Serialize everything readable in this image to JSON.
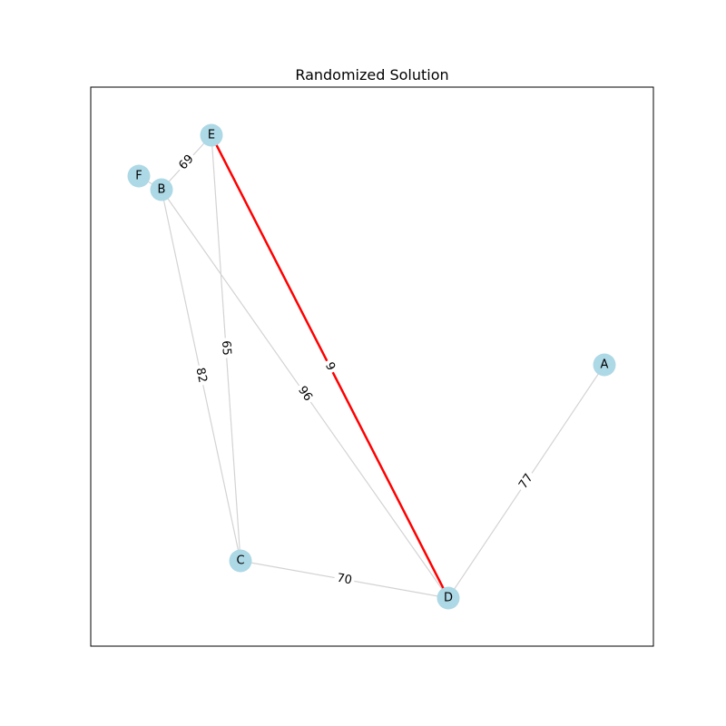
{
  "title": "Randomized Solution",
  "colors": {
    "edge": "#d3d3d3",
    "highlight": "#ff0000",
    "node": "#add8e6",
    "frame": "#000000",
    "label_bg": "#ffffff"
  },
  "nodes": [
    {
      "id": "A",
      "label": "A"
    },
    {
      "id": "B",
      "label": "B"
    },
    {
      "id": "C",
      "label": "C"
    },
    {
      "id": "D",
      "label": "D"
    },
    {
      "id": "E",
      "label": "E"
    },
    {
      "id": "F",
      "label": "F"
    }
  ],
  "edges": [
    {
      "from": "E",
      "to": "B",
      "weight": "69",
      "highlight": false
    },
    {
      "from": "E",
      "to": "C",
      "weight": "65",
      "highlight": false
    },
    {
      "from": "E",
      "to": "D",
      "weight": "9",
      "highlight": true
    },
    {
      "from": "B",
      "to": "C",
      "weight": "82",
      "highlight": false
    },
    {
      "from": "B",
      "to": "D",
      "weight": "96",
      "highlight": false
    },
    {
      "from": "F",
      "to": "B",
      "weight": "",
      "highlight": false
    },
    {
      "from": "C",
      "to": "D",
      "weight": "70",
      "highlight": false
    },
    {
      "from": "D",
      "to": "A",
      "weight": "77",
      "highlight": false
    }
  ]
}
